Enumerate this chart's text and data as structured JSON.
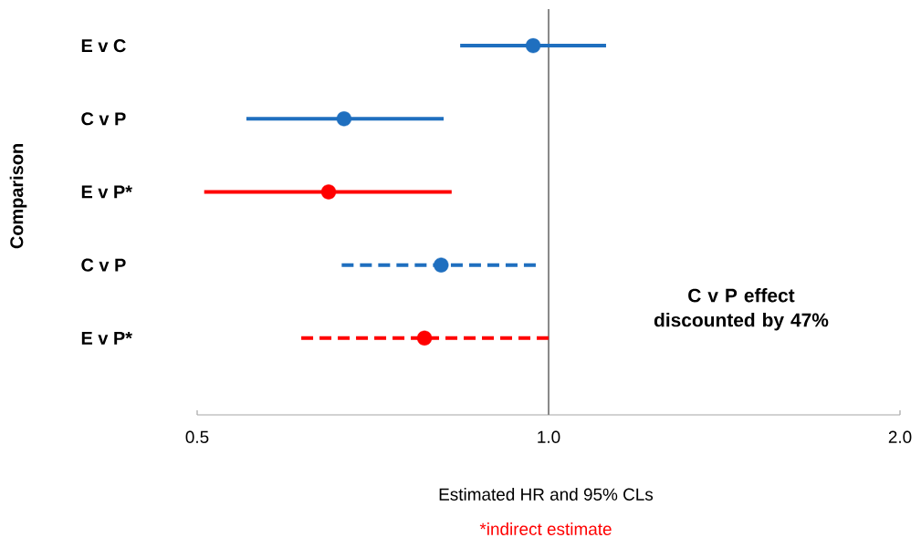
{
  "chart_data": {
    "type": "scatter",
    "orientation": "horizontal",
    "categories": [
      "E v C",
      "C v P",
      "E v P*",
      "C v P",
      "E v P*"
    ],
    "series": [
      {
        "color": "#1f6fbf",
        "values": [
          0.97,
          0.668,
          null,
          null,
          null
        ],
        "errors": [
          [
            0.84,
            1.12
          ],
          [
            0.551,
            0.813
          ],
          null,
          null,
          null
        ],
        "line_style": "solid"
      },
      {
        "color": "#ff0000",
        "values": [
          null,
          null,
          0.648,
          null,
          null
        ],
        "errors": [
          null,
          null,
          [
            0.507,
            0.826
          ],
          null,
          null
        ],
        "line_style": "solid"
      },
      {
        "color": "#1f6fbf",
        "values": [
          null,
          null,
          null,
          0.809,
          null
        ],
        "errors": [
          null,
          null,
          null,
          [
            0.665,
            0.975
          ],
          null
        ],
        "line_style": "dashed"
      },
      {
        "color": "#ff0000",
        "values": [
          null,
          null,
          null,
          null,
          0.783
        ],
        "errors": [
          null,
          null,
          null,
          null,
          [
            0.614,
            1.0
          ]
        ],
        "line_style": "dashed"
      }
    ],
    "xlabel": "Estimated HR and 95% CLs",
    "ylabel": "Comparison",
    "log": "x",
    "xlim": [
      0.5,
      2.0
    ],
    "xticks": [
      0.5,
      {
        "value": 1,
        "label": "1.0"
      },
      {
        "value": 2,
        "label": "2.0"
      }
    ],
    "ref_lines": [
      {
        "axis": "x",
        "value": 1,
        "color": "#888888"
      }
    ],
    "marker": "circle",
    "grid": false,
    "annotations": [
      "C v P effect discounted by 47%",
      "*indirect estimate"
    ]
  }
}
